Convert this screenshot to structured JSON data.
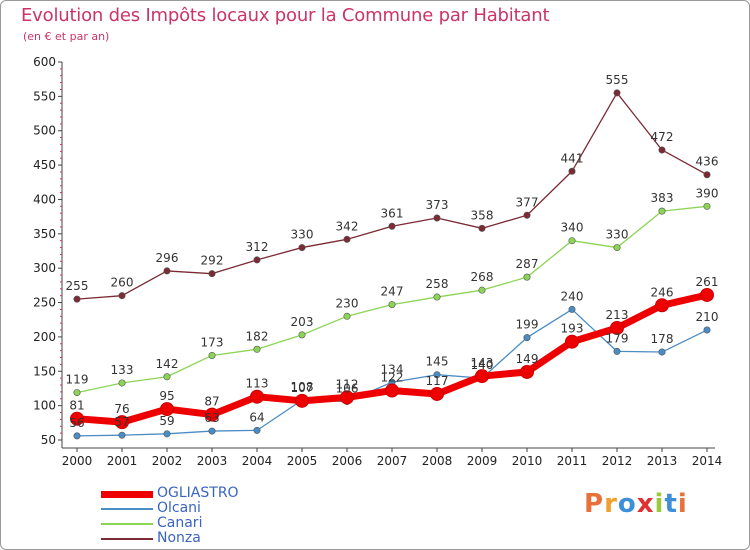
{
  "title": "Evolution des Impôts locaux pour la Commune par Habitant",
  "subtitle": "(en € et par an)",
  "logo": {
    "text": "Proxiti",
    "colors": [
      "#e8703a",
      "#f0a030",
      "#3c8fd8",
      "#e03030",
      "#9cc83c",
      "#3c8fd8",
      "#e8703a"
    ]
  },
  "chart_data": {
    "type": "line",
    "title": "Evolution des Impôts locaux pour la Commune par Habitant",
    "subtitle": "(en € et par an)",
    "x": [
      2000,
      2001,
      2002,
      2003,
      2004,
      2005,
      2006,
      2007,
      2008,
      2009,
      2010,
      2011,
      2012,
      2013,
      2014
    ],
    "ylim": [
      50,
      600
    ],
    "yticks": [
      50,
      100,
      150,
      200,
      250,
      300,
      350,
      400,
      450,
      500,
      550,
      600
    ],
    "grid": false,
    "legend": "bottom-left",
    "series": [
      {
        "name": "Nonza",
        "color": "#7b2b34",
        "values": [
          255,
          260,
          296,
          292,
          312,
          330,
          342,
          361,
          373,
          358,
          377,
          441,
          555,
          472,
          436
        ]
      },
      {
        "name": "Canari",
        "color": "#8cd456",
        "values": [
          119,
          133,
          142,
          173,
          182,
          203,
          230,
          247,
          258,
          268,
          287,
          340,
          330,
          383,
          390
        ]
      },
      {
        "name": "Olcani",
        "color": "#4a8cc4",
        "values": [
          56,
          57,
          59,
          63,
          64,
          108,
          106,
          134,
          145,
          140,
          199,
          240,
          179,
          178,
          210
        ]
      },
      {
        "name": "OGLIASTRO",
        "color": "#ee0000",
        "values": [
          81,
          76,
          95,
          87,
          113,
          107,
          112,
          122,
          117,
          143,
          149,
          193,
          213,
          246,
          261
        ]
      }
    ],
    "legend_order": [
      "OGLIASTRO",
      "Olcani",
      "Canari",
      "Nonza"
    ]
  }
}
